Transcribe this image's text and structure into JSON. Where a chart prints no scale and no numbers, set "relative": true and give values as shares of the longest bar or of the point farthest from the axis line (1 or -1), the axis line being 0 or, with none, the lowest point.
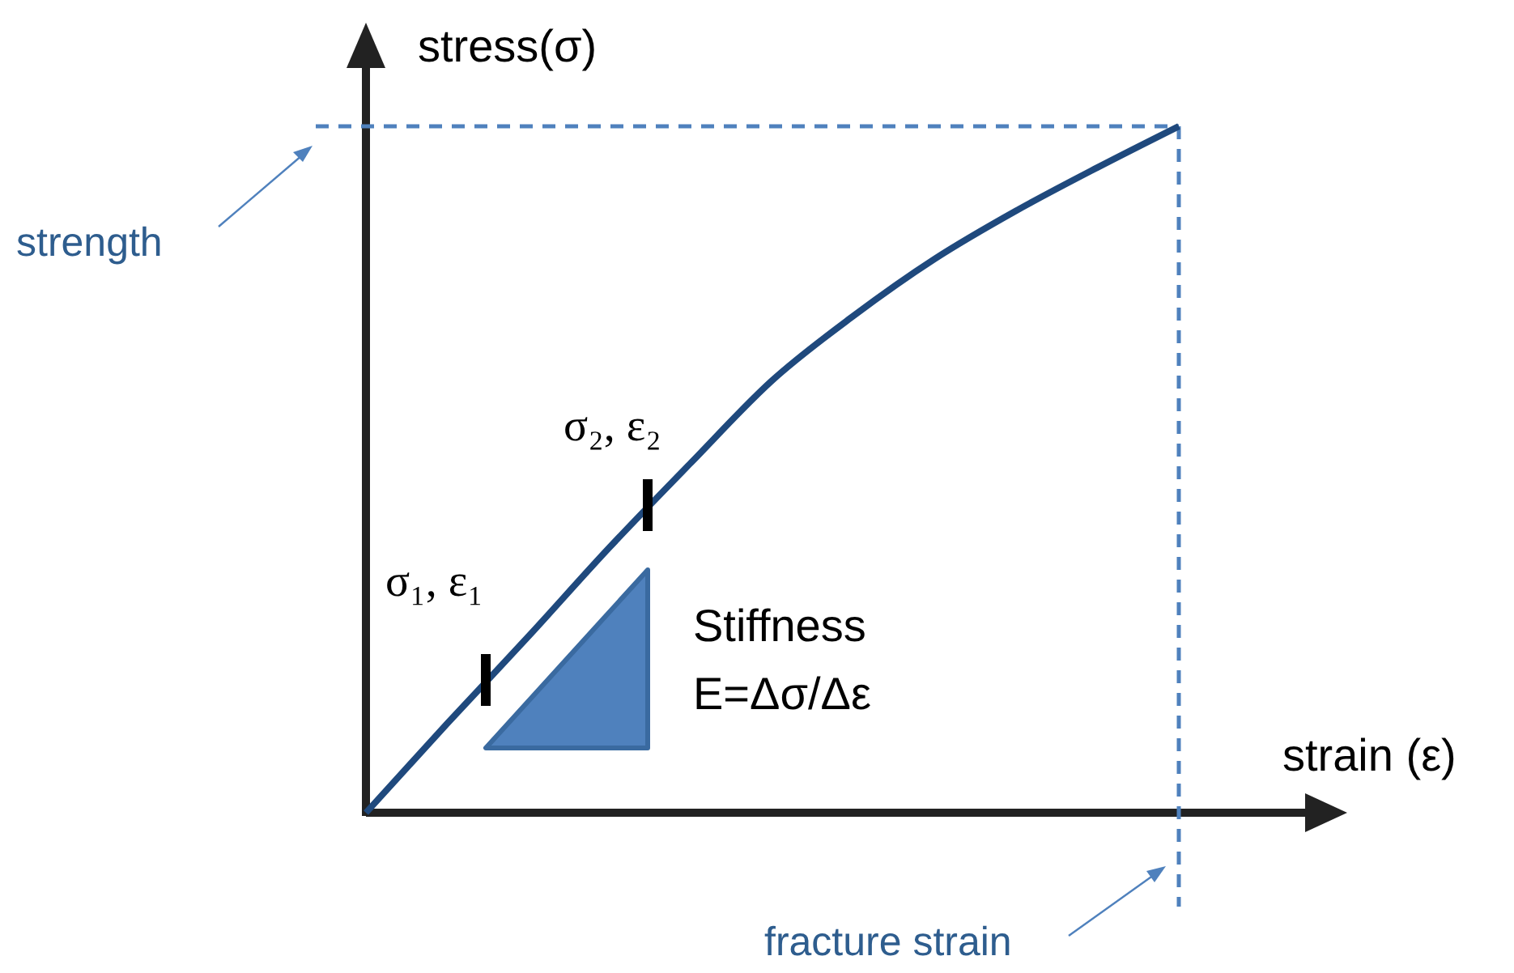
{
  "chart_data": {
    "type": "line",
    "relative": true,
    "xlabel": "strain (ε)",
    "ylabel": "stress(σ)",
    "categories": [
      null,
      null,
      null,
      null,
      null,
      null,
      null,
      null,
      null,
      null,
      null
    ],
    "series": [
      {
        "color": "#1f497d",
        "values": [
          0,
          0.13,
          0.257,
          0.387,
          0.51,
          0.63,
          0.724,
          0.807,
          0.877,
          0.94,
          1
        ]
      }
    ],
    "ref_lines": [
      {
        "axis": "y",
        "value": 1,
        "color": "#4f81bd",
        "line_style": "dashed"
      }
    ],
    "annotations": [
      "σ₁, ε₁",
      "σ₂, ε₂",
      "Stiffness",
      "E=Δσ/Δε",
      "strength",
      "fracture strain"
    ],
    "line_style": "solid"
  }
}
